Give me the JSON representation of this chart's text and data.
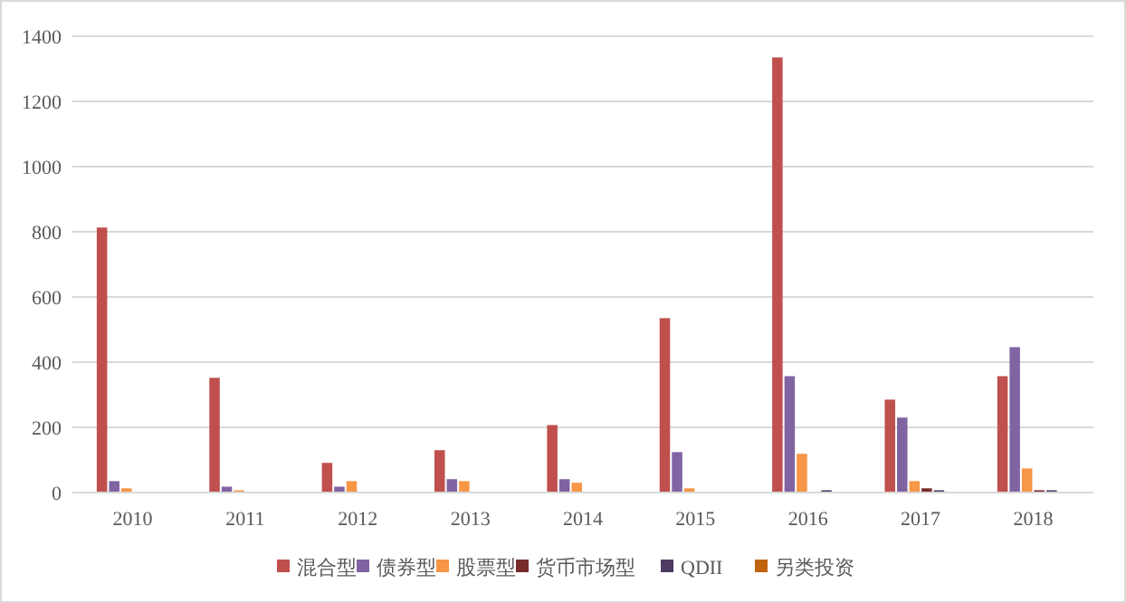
{
  "chart_data": {
    "type": "bar",
    "categories": [
      "2010",
      "2011",
      "2012",
      "2013",
      "2014",
      "2015",
      "2016",
      "2017",
      "2018"
    ],
    "series": [
      {
        "name": "混合型",
        "color": "#c0504d",
        "values": [
          813,
          352,
          91,
          130,
          207,
          535,
          1335,
          285,
          357
        ]
      },
      {
        "name": "债券型",
        "color": "#8064a2",
        "values": [
          35,
          18,
          18,
          41,
          41,
          124,
          357,
          230,
          446
        ]
      },
      {
        "name": "股票型",
        "color": "#f79646",
        "values": [
          13,
          7,
          35,
          35,
          30,
          13,
          119,
          35,
          74
        ]
      },
      {
        "name": "货币市场型",
        "color": "#772c2a",
        "values": [
          0,
          0,
          0,
          0,
          0,
          0,
          0,
          13,
          7
        ]
      },
      {
        "name": "QDII",
        "color": "#4d3b62",
        "values": [
          0,
          0,
          0,
          0,
          0,
          0,
          7,
          7,
          7
        ]
      },
      {
        "name": "另类投资",
        "color": "#c0630e",
        "values": [
          0,
          0,
          0,
          0,
          0,
          0,
          0,
          0,
          0
        ]
      }
    ],
    "ylim": [
      0,
      1400
    ],
    "yticks": [
      0,
      200,
      400,
      600,
      800,
      1000,
      1200,
      1400
    ],
    "grid": "y",
    "legend": "bottom"
  }
}
